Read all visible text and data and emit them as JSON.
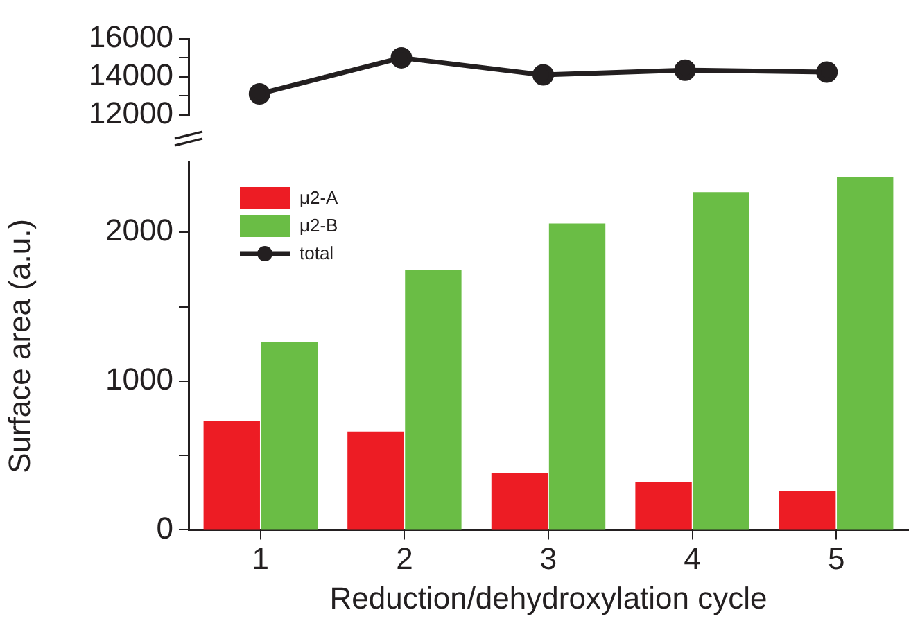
{
  "chart_data": [
    {
      "type": "line",
      "categories": [
        "1",
        "2",
        "3",
        "4",
        "5"
      ],
      "series": [
        {
          "name": "total",
          "color": "#231f20",
          "marker": "circle",
          "values": [
            13100,
            15000,
            14100,
            14350,
            14250
          ]
        }
      ],
      "ylim": [
        12000,
        16000
      ],
      "yticks": [
        12000,
        {
          "value": 13000,
          "label": null
        },
        14000,
        {
          "value": 15000,
          "label": null
        },
        16000
      ],
      "tick_labels": "y"
    },
    {
      "type": "bar",
      "xlabel": "Reduction/dehydroxylation cycle",
      "ylabel": "Surface area (a.u.)",
      "categories": [
        "1",
        "2",
        "3",
        "4",
        "5"
      ],
      "series": [
        {
          "name": "μ2-A",
          "color": "#ed1c24",
          "values": [
            730,
            660,
            380,
            320,
            260
          ]
        },
        {
          "name": "μ2-B",
          "color": "#6abd45",
          "values": [
            1260,
            1750,
            2060,
            2270,
            2370
          ]
        }
      ],
      "ylim": [
        0,
        2470
      ],
      "yticks": [
        0,
        {
          "value": 500,
          "label": null
        },
        1000,
        {
          "value": 1500,
          "label": null
        },
        2000
      ],
      "legend": "top left"
    }
  ]
}
